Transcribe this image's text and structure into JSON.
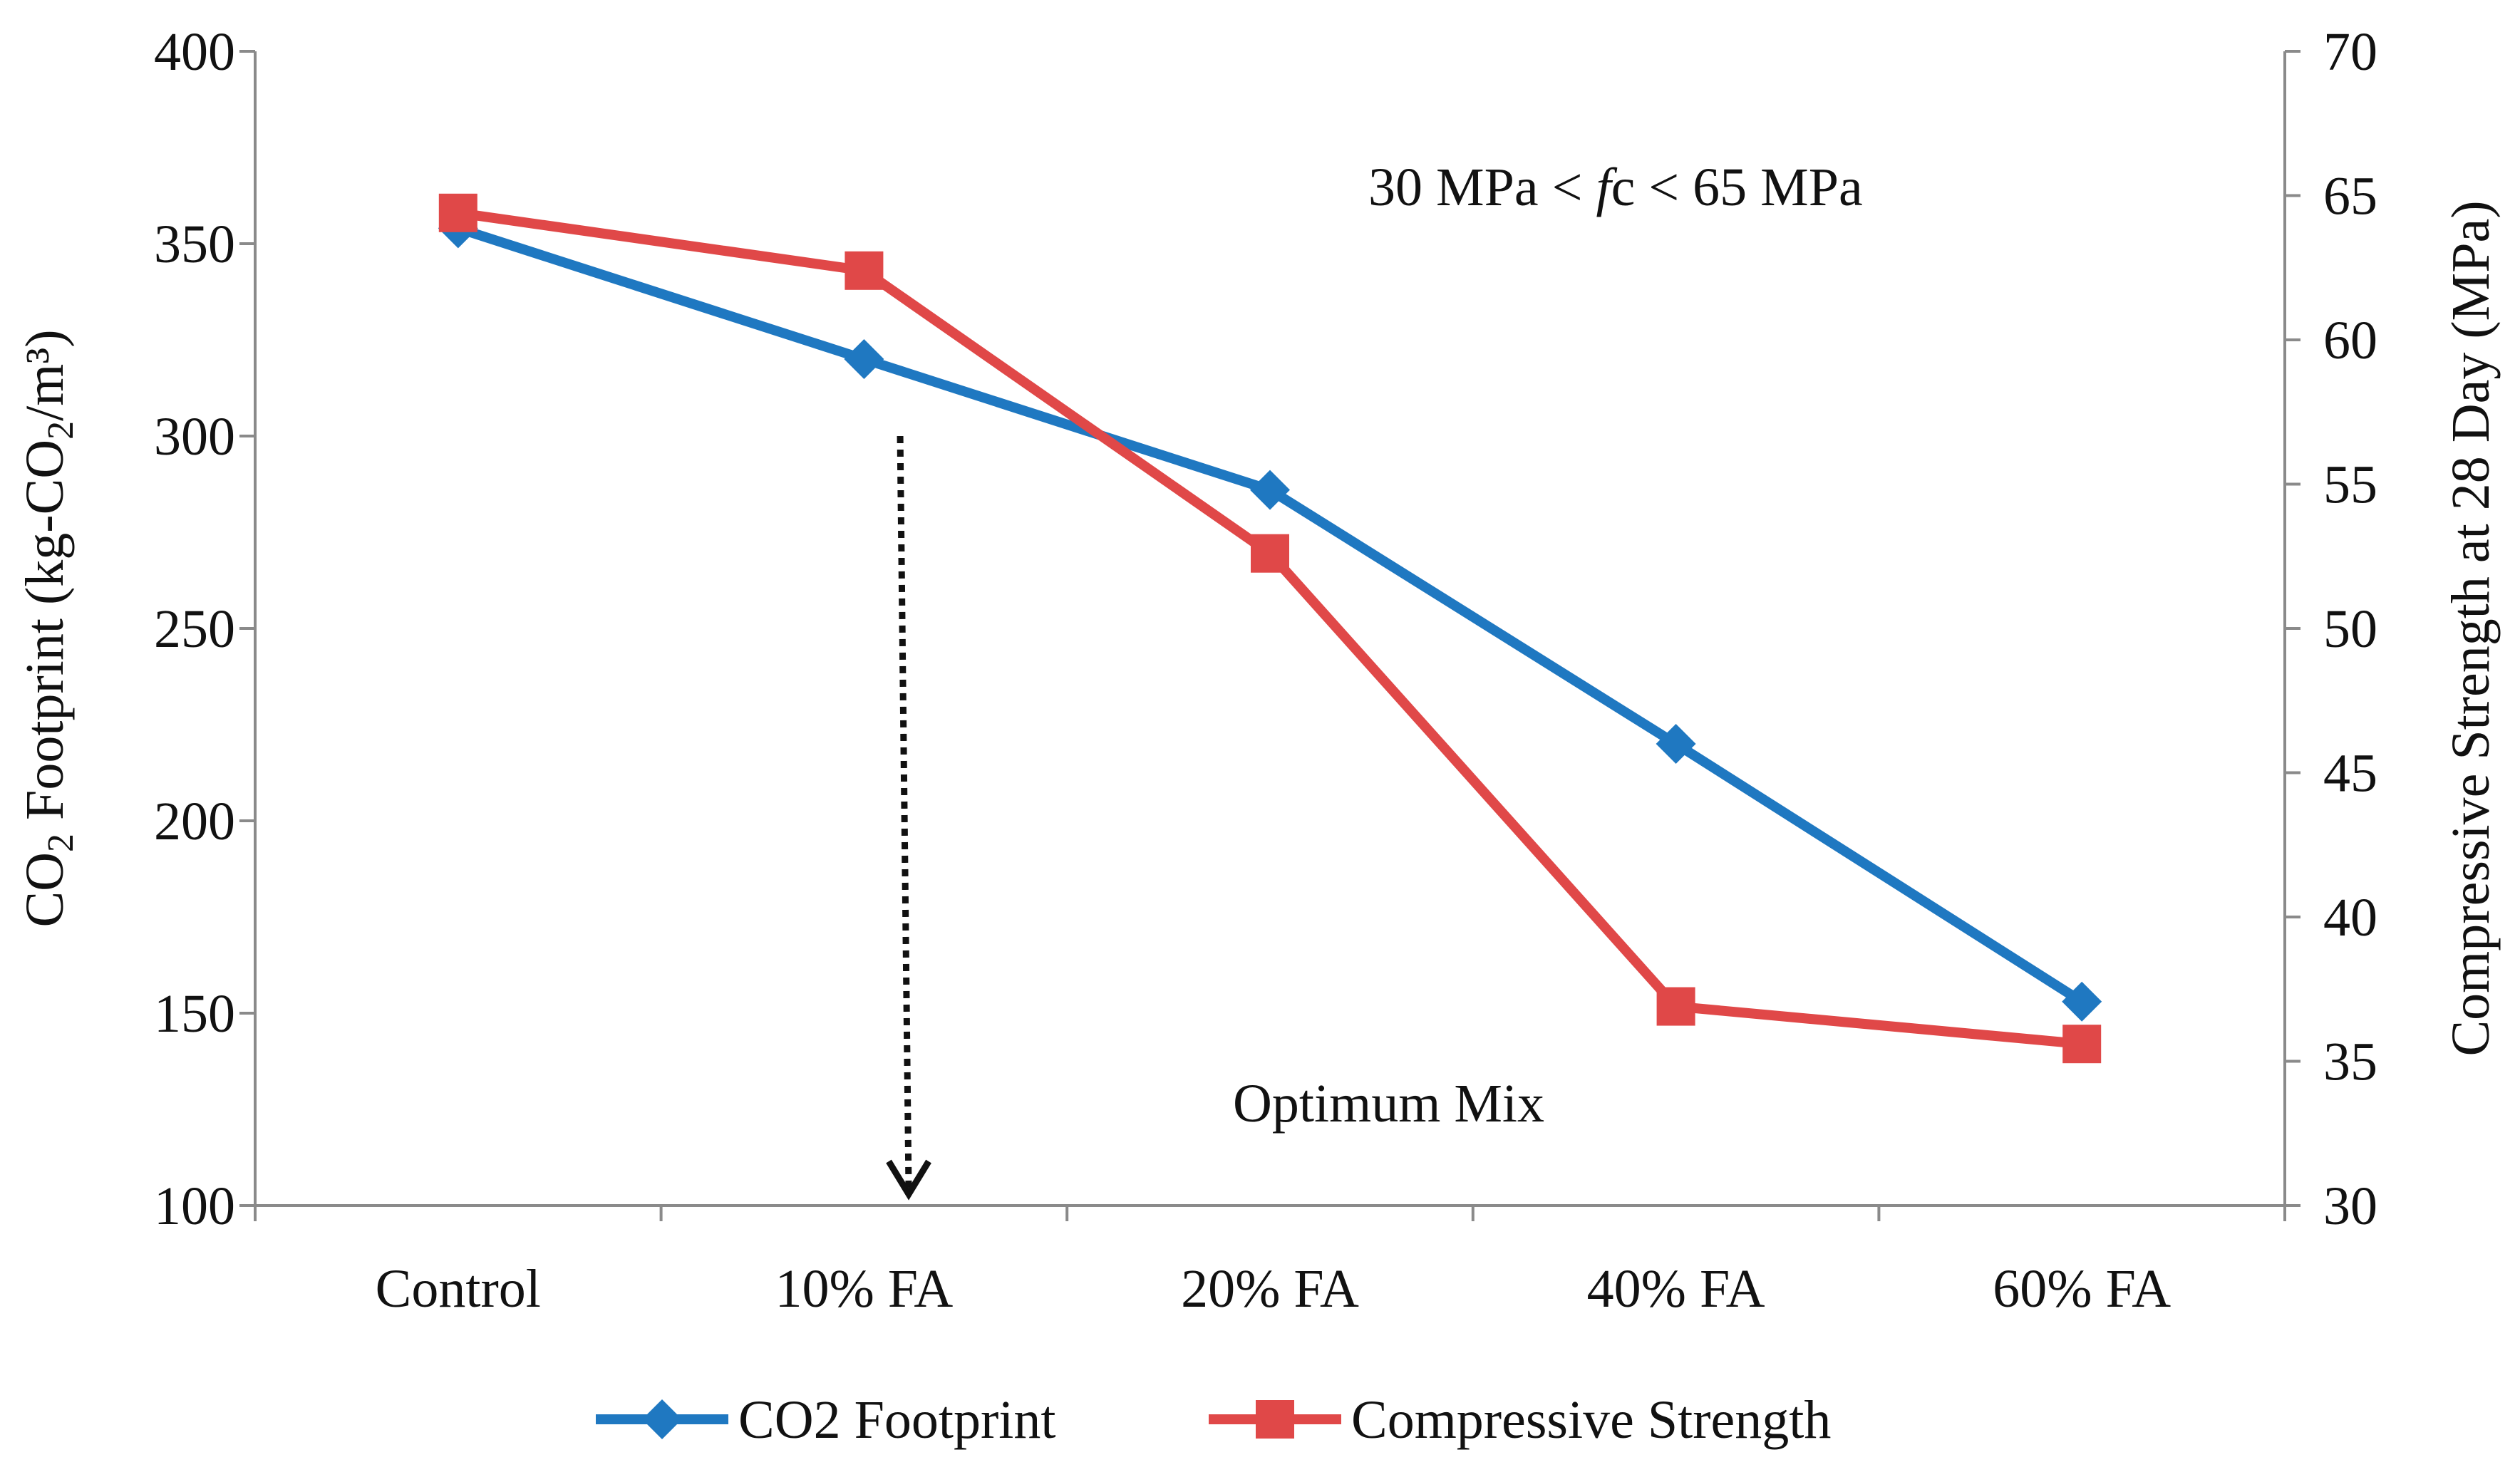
{
  "chart_data": {
    "type": "line",
    "categories": [
      "Control",
      "10% FA",
      "20% FA",
      "40% FA",
      "60% FA"
    ],
    "series": [
      {
        "name": "CO2 Footprint",
        "axis": "left",
        "color": "#1f78c1",
        "marker": "diamond",
        "values": [
          354,
          320,
          286,
          220,
          153
        ]
      },
      {
        "name": "Compressive Strength",
        "axis": "right",
        "color": "#e04848",
        "marker": "square",
        "values": [
          64.4,
          62.4,
          52.6,
          36.9,
          35.6
        ]
      }
    ],
    "y_left": {
      "label_parts": [
        "CO",
        "2",
        " Footprint (kg-CO",
        "2",
        "/m³)"
      ],
      "lim": [
        100,
        400
      ],
      "ticks": [
        "100",
        "150",
        "200",
        "250",
        "300",
        "350",
        "400"
      ]
    },
    "y_right": {
      "label": "Compressive Strength at 28 Day (MPa)",
      "lim": [
        30,
        70
      ],
      "ticks": [
        "30",
        "35",
        "40",
        "45",
        "50",
        "55",
        "60",
        "65",
        "70"
      ]
    },
    "annotations": {
      "range_parts": [
        "30 MPa < ",
        "f",
        "c < 65 MPa"
      ],
      "optimum": "Optimum Mix"
    },
    "optimum_arrow": {
      "x_category_position": 1.61,
      "y_from": 300,
      "y_to": 100
    },
    "legend_position": "bottom",
    "grid": false
  }
}
